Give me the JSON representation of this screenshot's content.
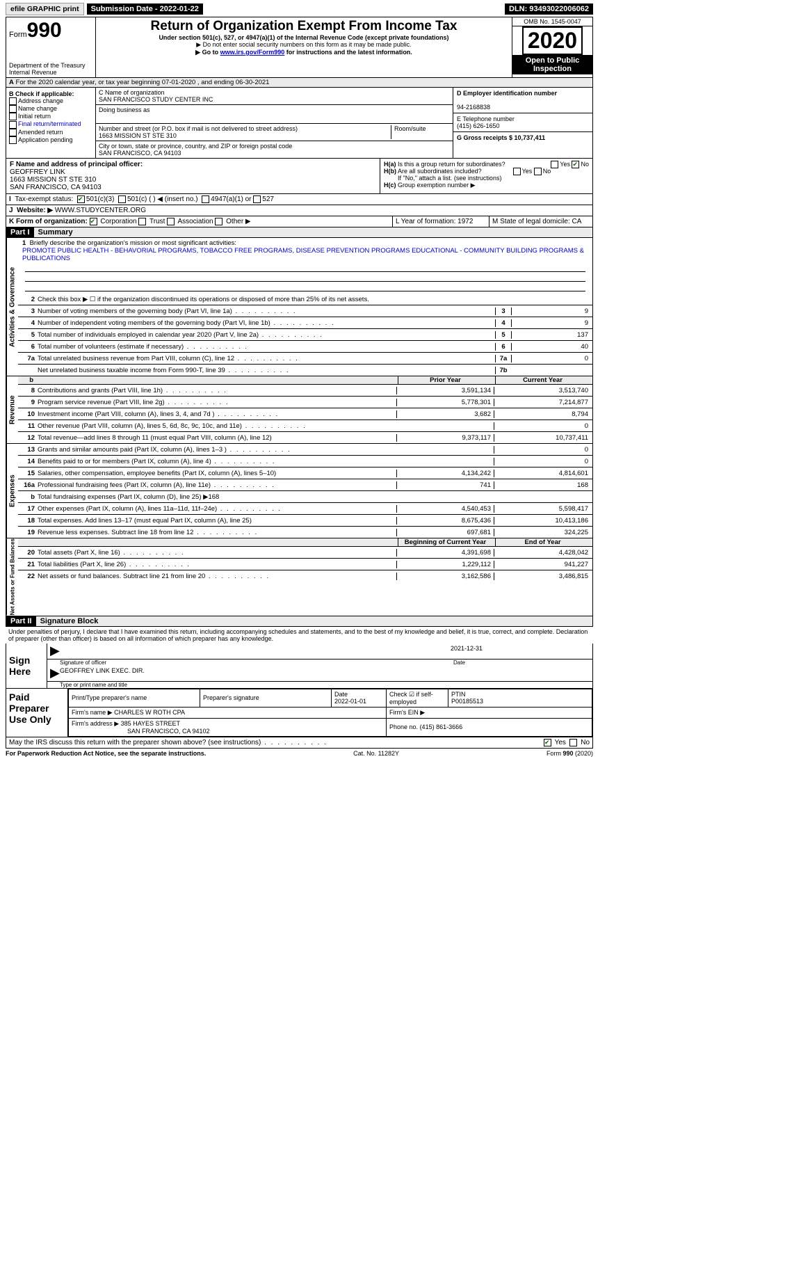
{
  "top_bar": {
    "efile": "efile GRAPHIC print",
    "submission": "Submission Date - 2022-01-22",
    "dln": "DLN: 93493022006062"
  },
  "header": {
    "form_word": "Form",
    "form_num": "990",
    "title": "Return of Organization Exempt From Income Tax",
    "subtitle": "Under section 501(c), 527, or 4947(a)(1) of the Internal Revenue Code (except private foundations)",
    "note1": "▶ Do not enter social security numbers on this form as it may be made public.",
    "note2_pre": "▶ Go to ",
    "note2_link": "www.irs.gov/Form990",
    "note2_post": " for instructions and the latest information.",
    "dept": "Department of the Treasury\nInternal Revenue",
    "omb": "OMB No. 1545-0047",
    "year": "2020",
    "open": "Open to Public Inspection"
  },
  "period": "For the 2020 calendar year, or tax year beginning 07-01-2020   , and ending 06-30-2021",
  "section_b": {
    "label": "B Check if applicable:",
    "items": [
      "Address change",
      "Name change",
      "Initial return",
      "Final return/terminated",
      "Amended return",
      "Application pending"
    ]
  },
  "fields": {
    "c_label": "C Name of organization",
    "c_val": "SAN FRANCISCO STUDY CENTER INC",
    "dba": "Doing business as",
    "addr_label": "Number and street (or P.O. box if mail is not delivered to street address)",
    "addr_val": "1663 MISSION ST STE 310",
    "room": "Room/suite",
    "city_label": "City or town, state or province, country, and ZIP or foreign postal code",
    "city_val": "SAN FRANCISCO, CA  94103"
  },
  "right_fields": {
    "d_label": "D Employer identification number",
    "d_val": "94-2168838",
    "e_label": "E Telephone number",
    "e_val": "(415) 626-1650",
    "g_label": "G Gross receipts $ 10,737,411"
  },
  "f_block": {
    "label": "F  Name and address of principal officer:",
    "name": "GEOFFREY LINK",
    "addr1": "1663 MISSION ST STE 310",
    "addr2": "SAN FRANCISCO, CA  94103"
  },
  "h_block": {
    "ha": "Is this a group return for subordinates?",
    "hb": "Are all subordinates included?",
    "hb_note": "If \"No,\" attach a list. (see instructions)",
    "hc": "Group exemption number ▶",
    "yes": "Yes",
    "no": "No"
  },
  "i_row": {
    "label": "Tax-exempt status:",
    "opt1": "501(c)(3)",
    "opt2": "501(c) (  ) ◀ (insert no.)",
    "opt3": "4947(a)(1) or",
    "opt4": "527"
  },
  "j_row": {
    "label": "Website: ▶",
    "val": "WWW.STUDYCENTER.ORG"
  },
  "k_row": {
    "label": "K Form of organization:",
    "o1": "Corporation",
    "o2": "Trust",
    "o3": "Association",
    "o4": "Other ▶",
    "l": "L Year of formation: 1972",
    "m": "M State of legal domicile: CA"
  },
  "part1": {
    "hdr": "Part I",
    "title": "Summary"
  },
  "mission": {
    "q": "Briefly describe the organization's mission or most significant activities:",
    "text": "PROMOTE PUBLIC HEALTH - BEHAVORIAL PROGRAMS, TOBACCO FREE PROGRAMS, DISEASE PREVENTION PROGRAMS EDUCATIONAL - COMMUNITY BUILDING PROGRAMS & PUBLICATIONS"
  },
  "gov_side": "Activities & Governance",
  "gov_lines": [
    {
      "n": "2",
      "t": "Check this box ▶ ☐  if the organization discontinued its operations or disposed of more than 25% of its net assets."
    },
    {
      "n": "3",
      "t": "Number of voting members of the governing body (Part VI, line 1a)",
      "box": "3",
      "v": "9",
      "dots": true
    },
    {
      "n": "4",
      "t": "Number of independent voting members of the governing body (Part VI, line 1b)",
      "box": "4",
      "v": "9",
      "dots": true
    },
    {
      "n": "5",
      "t": "Total number of individuals employed in calendar year 2020 (Part V, line 2a)",
      "box": "5",
      "v": "137",
      "dots": true
    },
    {
      "n": "6",
      "t": "Total number of volunteers (estimate if necessary)",
      "box": "6",
      "v": "40",
      "dots": true
    },
    {
      "n": "7a",
      "t": "Total unrelated business revenue from Part VIII, column (C), line 12",
      "box": "7a",
      "v": "0",
      "dots": true
    },
    {
      "n": "",
      "t": "Net unrelated business taxable income from Form 990-T, line 39",
      "box": "7b",
      "v": "",
      "dots": true
    }
  ],
  "col_hdr": {
    "a": "Prior Year",
    "b": "Current Year"
  },
  "rev_side": "Revenue",
  "rev_lines": [
    {
      "n": "8",
      "t": "Contributions and grants (Part VIII, line 1h)",
      "a": "3,591,134",
      "b": "3,513,740",
      "dots": true
    },
    {
      "n": "9",
      "t": "Program service revenue (Part VIII, line 2g)",
      "a": "5,778,301",
      "b": "7,214,877",
      "dots": true
    },
    {
      "n": "10",
      "t": "Investment income (Part VIII, column (A), lines 3, 4, and 7d )",
      "a": "3,682",
      "b": "8,794",
      "dots": true
    },
    {
      "n": "11",
      "t": "Other revenue (Part VIII, column (A), lines 5, 6d, 8c, 9c, 10c, and 11e)",
      "a": "",
      "b": "0",
      "dots": true
    },
    {
      "n": "12",
      "t": "Total revenue—add lines 8 through 11 (must equal Part VIII, column (A), line 12)",
      "a": "9,373,117",
      "b": "10,737,411"
    }
  ],
  "exp_side": "Expenses",
  "exp_lines": [
    {
      "n": "13",
      "t": "Grants and similar amounts paid (Part IX, column (A), lines 1–3 )",
      "a": "",
      "b": "0",
      "dots": true
    },
    {
      "n": "14",
      "t": "Benefits paid to or for members (Part IX, column (A), line 4)",
      "a": "",
      "b": "0",
      "dots": true
    },
    {
      "n": "15",
      "t": "Salaries, other compensation, employee benefits (Part IX, column (A), lines 5–10)",
      "a": "4,134,242",
      "b": "4,814,601"
    },
    {
      "n": "16a",
      "t": "Professional fundraising fees (Part IX, column (A), line 11e)",
      "a": "741",
      "b": "168",
      "dots": true
    },
    {
      "n": "b",
      "t": "Total fundraising expenses (Part IX, column (D), line 25) ▶168",
      "a": "",
      "b": "",
      "shade": true
    },
    {
      "n": "17",
      "t": "Other expenses (Part IX, column (A), lines 11a–11d, 11f–24e)",
      "a": "4,540,453",
      "b": "5,598,417",
      "dots": true
    },
    {
      "n": "18",
      "t": "Total expenses. Add lines 13–17 (must equal Part IX, column (A), line 25)",
      "a": "8,675,436",
      "b": "10,413,186"
    },
    {
      "n": "19",
      "t": "Revenue less expenses. Subtract line 18 from line 12",
      "a": "697,681",
      "b": "324,225",
      "dots": true
    }
  ],
  "na_side": "Net Assets or Fund Balances",
  "na_hdr": {
    "a": "Beginning of Current Year",
    "b": "End of Year"
  },
  "na_lines": [
    {
      "n": "20",
      "t": "Total assets (Part X, line 16)",
      "a": "4,391,698",
      "b": "4,428,042",
      "dots": true
    },
    {
      "n": "21",
      "t": "Total liabilities (Part X, line 26)",
      "a": "1,229,112",
      "b": "941,227",
      "dots": true
    },
    {
      "n": "22",
      "t": "Net assets or fund balances. Subtract line 21 from line 20",
      "a": "3,162,586",
      "b": "3,486,815",
      "dots": true
    }
  ],
  "part2": {
    "hdr": "Part II",
    "title": "Signature Block"
  },
  "penalty": "Under penalties of perjury, I declare that I have examined this return, including accompanying schedules and statements, and to the best of my knowledge and belief, it is true, correct, and complete. Declaration of preparer (other than officer) is based on all information of which preparer has any knowledge.",
  "sign": {
    "side": "Sign Here",
    "sig_officer_label": "Signature of officer",
    "date_label": "Date",
    "date_val": "2021-12-31",
    "name": "GEOFFREY LINK  EXEC. DIR.",
    "name_label": "Type or print name and title"
  },
  "prep": {
    "side": "Paid Preparer Use Only",
    "h1": "Print/Type preparer's name",
    "h2": "Preparer's signature",
    "h3": "Date",
    "h3v": "2022-01-01",
    "h4": "Check ☑ if self-employed",
    "h5": "PTIN",
    "h5v": "P00185513",
    "firm_name_label": "Firm's name  ▶",
    "firm_name": "CHARLES W ROTH CPA",
    "firm_ein": "Firm's EIN ▶",
    "firm_addr_label": "Firm's address ▶",
    "firm_addr1": "385 HAYES STREET",
    "firm_addr2": "SAN FRANCISCO, CA  94102",
    "phone_label": "Phone no.",
    "phone": "(415) 861-3666"
  },
  "discuss": "May the IRS discuss this return with the preparer shown above? (see instructions)",
  "footer": {
    "left": "For Paperwork Reduction Act Notice, see the separate instructions.",
    "mid": "Cat. No. 11282Y",
    "right": "Form 990 (2020)"
  }
}
